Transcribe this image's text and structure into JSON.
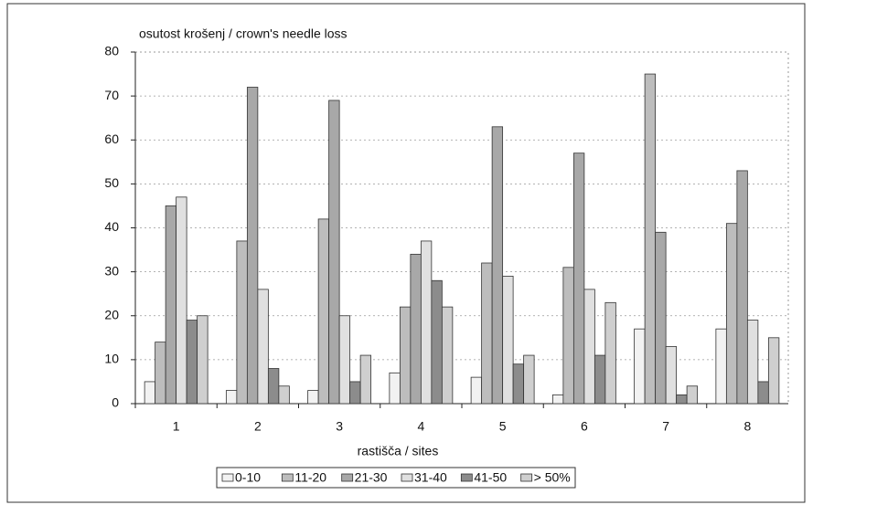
{
  "chart_data": {
    "type": "bar",
    "y_label": "osutost krošenj / crown's needle loss",
    "x_label": "rastišča / sites",
    "categories": [
      "1",
      "2",
      "3",
      "4",
      "5",
      "6",
      "7",
      "8"
    ],
    "series": [
      {
        "name": "0-10",
        "color": "#f2f2f2",
        "values": [
          5,
          3,
          3,
          7,
          6,
          2,
          17,
          17
        ]
      },
      {
        "name": "11-20",
        "color": "#bdbdbd",
        "values": [
          14,
          37,
          42,
          22,
          32,
          31,
          75,
          41
        ]
      },
      {
        "name": "21-30",
        "color": "#a8a8a8",
        "values": [
          45,
          72,
          69,
          34,
          63,
          57,
          39,
          53
        ]
      },
      {
        "name": "31-40",
        "color": "#e0e0e0",
        "values": [
          47,
          26,
          20,
          37,
          29,
          26,
          13,
          19
        ]
      },
      {
        "name": "41-50",
        "color": "#8c8c8c",
        "values": [
          19,
          8,
          5,
          28,
          9,
          11,
          2,
          5
        ]
      },
      {
        "name": "> 50%",
        "color": "#cfcfcf",
        "values": [
          20,
          4,
          11,
          22,
          11,
          23,
          4,
          15
        ]
      }
    ],
    "ylim": [
      0,
      80
    ],
    "yticks": [
      0,
      10,
      20,
      30,
      40,
      50,
      60,
      70,
      80
    ],
    "grid": true
  }
}
